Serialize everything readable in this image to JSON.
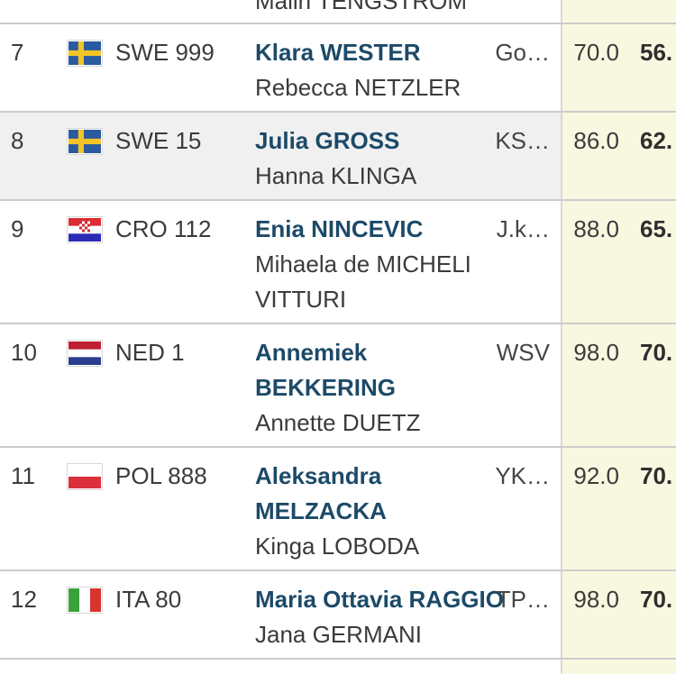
{
  "colors": {
    "helm_name_blue": "#1c4a68",
    "body_text": "#3b3b3b",
    "row_highlight_bg": "#f0f0f0",
    "score_column_bg": "#f8f8e0",
    "row_border": "#cccccc"
  },
  "partial_rows": {
    "top_crew": "Malin TENGSTROM"
  },
  "results_table": {
    "rows": [
      {
        "rank": "7",
        "country": "SWE",
        "sail_number": "SWE 999",
        "helm_lines": [
          "Klara WESTER"
        ],
        "crew_lines": [
          "Rebecca NETZLER"
        ],
        "club": "Go…",
        "netto": "70.0",
        "total": "56.",
        "highlighted": false
      },
      {
        "rank": "8",
        "country": "SWE",
        "sail_number": "SWE 15",
        "helm_lines": [
          "Julia GROSS"
        ],
        "crew_lines": [
          "Hanna KLINGA"
        ],
        "club": "KS…",
        "netto": "86.0",
        "total": "62.",
        "highlighted": true
      },
      {
        "rank": "9",
        "country": "CRO",
        "sail_number": "CRO 112",
        "helm_lines": [
          "Enia NINCEVIC"
        ],
        "crew_lines": [
          "Mihaela de MICHELI",
          "VITTURI"
        ],
        "club": "J.k…",
        "netto": "88.0",
        "total": "65.",
        "highlighted": false
      },
      {
        "rank": "10",
        "country": "NED",
        "sail_number": "NED 1",
        "helm_lines": [
          "Annemiek",
          "BEKKERING"
        ],
        "crew_lines": [
          "Annette DUETZ"
        ],
        "club": "WSV",
        "netto": "98.0",
        "total": "70.",
        "highlighted": false
      },
      {
        "rank": "11",
        "country": "POL",
        "sail_number": "POL 888",
        "helm_lines": [
          "Aleksandra",
          "MELZACKA"
        ],
        "crew_lines": [
          "Kinga LOBODA"
        ],
        "club": "YK…",
        "netto": "92.0",
        "total": "70.",
        "highlighted": false
      },
      {
        "rank": "12",
        "country": "ITA",
        "sail_number": "ITA 80",
        "helm_lines": [
          "Maria Ottavia RAGGIO"
        ],
        "crew_lines": [
          "Jana GERMANI"
        ],
        "club": "TP…",
        "netto": "98.0",
        "total": "70.",
        "highlighted": false
      }
    ]
  },
  "flags": {
    "SWE": {
      "type": "nordic_cross",
      "colors": [
        "#2a5aa0",
        "#f2c428"
      ]
    },
    "CRO": {
      "type": "h_stripes",
      "colors": [
        "#dd2c33",
        "#ffffff",
        "#2b2bb5"
      ],
      "emblem": "checker",
      "emblem_colors": [
        "#d02a33",
        "#ffffff"
      ]
    },
    "NED": {
      "type": "h_stripes",
      "colors": [
        "#c01f33",
        "#ffffff",
        "#2b3f8f"
      ]
    },
    "POL": {
      "type": "h_stripes",
      "colors": [
        "#ffffff",
        "#dc2f3d"
      ]
    },
    "ITA": {
      "type": "v_stripes",
      "colors": [
        "#3aa23a",
        "#ffffff",
        "#d8342f"
      ]
    }
  }
}
